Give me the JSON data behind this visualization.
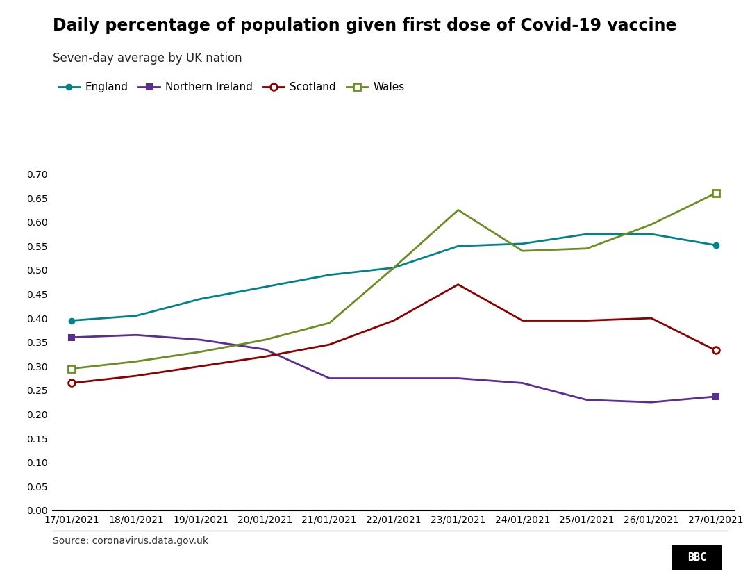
{
  "title": "Daily percentage of population given first dose of Covid-19 vaccine",
  "subtitle": "Seven-day average by UK nation",
  "source": "Source: coronavirus.data.gov.uk",
  "dates": [
    "17/01/2021",
    "18/01/2021",
    "19/01/2021",
    "20/01/2021",
    "21/01/2021",
    "22/01/2021",
    "23/01/2021",
    "24/01/2021",
    "25/01/2021",
    "26/01/2021",
    "27/01/2021"
  ],
  "england": [
    0.395,
    0.405,
    0.44,
    0.465,
    0.49,
    0.505,
    0.55,
    0.555,
    0.575,
    0.575,
    0.552
  ],
  "northern_ireland": [
    0.36,
    0.365,
    0.355,
    0.335,
    0.275,
    0.275,
    0.275,
    0.265,
    0.23,
    0.225,
    0.237
  ],
  "scotland": [
    0.265,
    0.28,
    0.3,
    0.32,
    0.345,
    0.395,
    0.47,
    0.395,
    0.395,
    0.4,
    0.333
  ],
  "wales": [
    0.295,
    0.31,
    0.33,
    0.355,
    0.39,
    0.505,
    0.625,
    0.54,
    0.545,
    0.595,
    0.66
  ],
  "england_color": "#00828C",
  "ni_color": "#5C2D91",
  "scotland_color": "#8B0000",
  "wales_color": "#6B8E23",
  "ylim": [
    0.0,
    0.7
  ],
  "yticks": [
    0.0,
    0.05,
    0.1,
    0.15,
    0.2,
    0.25,
    0.3,
    0.35,
    0.4,
    0.45,
    0.5,
    0.55,
    0.6,
    0.65,
    0.7
  ],
  "background_color": "#ffffff",
  "title_fontsize": 17,
  "subtitle_fontsize": 12,
  "tick_fontsize": 10,
  "source_fontsize": 10,
  "legend_fontsize": 11
}
